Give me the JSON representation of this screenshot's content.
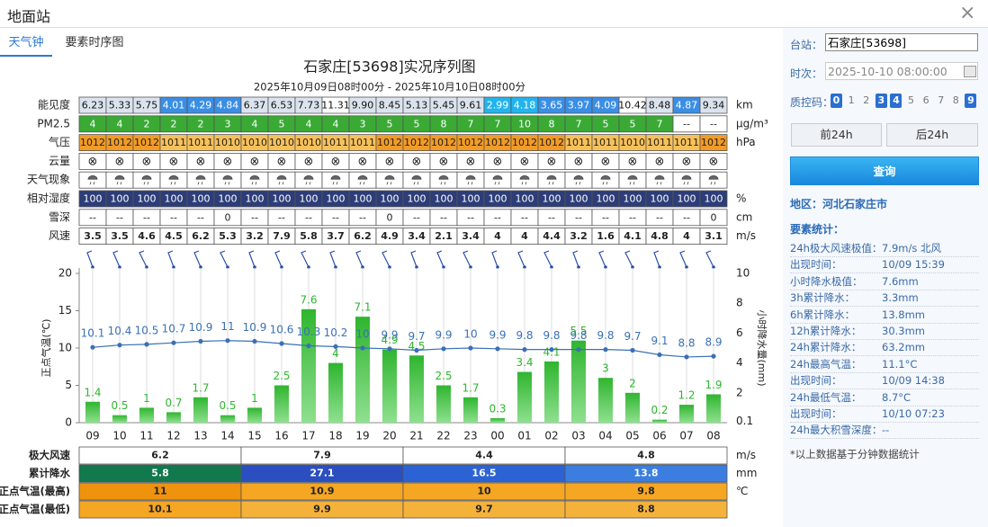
{
  "header": {
    "title": "地面站",
    "close": "×"
  },
  "tabs": [
    "天气钟",
    "要素时序图"
  ],
  "table": {
    "rows": [
      {
        "label": "能见度",
        "unit": "km",
        "values": [
          "6.23",
          "5.33",
          "5.75",
          "4.01",
          "4.29",
          "4.84",
          "6.37",
          "6.53",
          "7.73",
          "11.31",
          "9.90",
          "8.45",
          "5.13",
          "5.45",
          "9.61",
          "2.99",
          "4.18",
          "3.65",
          "3.97",
          "4.09",
          "10.42",
          "8.48",
          "4.87",
          "9.34"
        ]
      },
      {
        "label": "PM2.5",
        "unit": "μg/m³",
        "values": [
          4,
          4,
          2,
          2,
          2,
          3,
          4,
          5,
          4,
          4,
          3,
          5,
          5,
          8,
          7,
          7,
          10,
          8,
          7,
          5,
          5,
          7,
          "--",
          "--"
        ]
      },
      {
        "label": "气压",
        "unit": "hPa",
        "values": [
          1012,
          1012,
          1012,
          1011,
          1011,
          1010,
          1010,
          1010,
          1010,
          1011,
          1011,
          1012,
          1012,
          1012,
          1012,
          1012,
          1012,
          1012,
          1011,
          1011,
          1010,
          1011,
          1011,
          1012
        ]
      },
      {
        "label": "云量",
        "values": [
          "⊗",
          "⊗",
          "⊗",
          "⊗",
          "⊗",
          "⊗",
          "⊗",
          "⊗",
          "⊗",
          "⊗",
          "⊗",
          "⊗",
          "⊗",
          "⊗",
          "⊗",
          "⊗",
          "⊗",
          "⊗",
          "⊗",
          "⊗",
          "⊗",
          "⊗",
          "⊗",
          "⊗"
        ]
      },
      {
        "label": "天气现象"
      },
      {
        "label": "相对湿度",
        "unit": "%",
        "values": [
          100,
          100,
          100,
          100,
          100,
          100,
          100,
          100,
          100,
          100,
          100,
          100,
          100,
          100,
          100,
          100,
          100,
          100,
          100,
          100,
          100,
          100,
          100,
          100
        ]
      },
      {
        "label": "雪深",
        "unit": "cm",
        "values": [
          "--",
          "--",
          "--",
          "--",
          "--",
          0,
          "--",
          "--",
          "--",
          "--",
          "--",
          0,
          "--",
          "--",
          "--",
          "--",
          "--",
          "--",
          "--",
          "--",
          "--",
          "--",
          "--",
          0
        ]
      },
      {
        "label": "风速",
        "unit": "m/s",
        "values": [
          3.5,
          3.5,
          4.6,
          4.5,
          6.2,
          5.3,
          3.2,
          7.9,
          5.8,
          3.7,
          6.2,
          4.9,
          3.4,
          2.1,
          3.4,
          4,
          4,
          4.4,
          3.2,
          1.6,
          4.1,
          4.8,
          4,
          3.1
        ]
      }
    ]
  },
  "chart_data": {
    "type": "combo",
    "title": "石家庄[53698]实况序列图",
    "subtitle": "2025年10月09日08时00分 - 2025年10月10日08时00分",
    "ylabel": "正点气温(℃)",
    "y2label": "小时降水量(mm)",
    "categories": [
      "09",
      "10",
      "11",
      "12",
      "13",
      "14",
      "15",
      "16",
      "17",
      "18",
      "19",
      "20",
      "21",
      "22",
      "23",
      "00",
      "01",
      "02",
      "03",
      "04",
      "05",
      "06",
      "07",
      "08"
    ],
    "ylim": [
      0,
      20
    ],
    "yticks": [
      0,
      5,
      10,
      15,
      20
    ],
    "y2lim": [
      0,
      10
    ],
    "y2ticks": [
      0.1,
      2,
      4,
      6,
      8,
      10
    ],
    "grid": "x",
    "series": [
      {
        "type": "line",
        "color": "#3a70b5",
        "values": [
          10.1,
          10.4,
          10.5,
          10.7,
          10.9,
          11,
          10.9,
          10.6,
          10.3,
          10.2,
          10,
          9.9,
          9.7,
          9.9,
          10,
          9.9,
          9.8,
          9.8,
          9.8,
          9.8,
          9.7,
          9.1,
          8.8,
          8.9
        ]
      },
      {
        "type": "bar",
        "color": "#2fb52f",
        "axis": "y2",
        "values": [
          1.4,
          0.5,
          1,
          0.7,
          1.7,
          0.5,
          1,
          2.5,
          7.6,
          4,
          7.1,
          4.9,
          4.5,
          2.5,
          1.7,
          0.3,
          3.4,
          4.1,
          5.5,
          3,
          2,
          0.2,
          1.2,
          1.9
        ]
      }
    ]
  },
  "summary": {
    "rows": [
      {
        "label": "极大风速",
        "unit": "m/s",
        "values": [
          6.2,
          7.9,
          4.4,
          4.8
        ],
        "colors": [
          "#ffffff",
          "#ffffff",
          "#ffffff",
          "#ffffff"
        ]
      },
      {
        "label": "累计降水",
        "unit": "mm",
        "values": [
          5.8,
          27.1,
          16.5,
          13.8
        ],
        "colors": [
          "#12784e",
          "#2b4fc0",
          "#2c63d4",
          "#3b7ee0"
        ]
      },
      {
        "label": "正点气温(最高)",
        "unit": "℃",
        "values": [
          11,
          10.9,
          10,
          9.8
        ],
        "colors": [
          "#ef930e",
          "#f5a623",
          "#f5a623",
          "#f5a623"
        ]
      },
      {
        "label": "正点气温(最低)",
        "values": [
          10.1,
          9.9,
          9.7,
          8.8
        ],
        "colors": [
          "#f5a623",
          "#f5b23a",
          "#f5b23a",
          "#f5b23a"
        ]
      }
    ]
  },
  "sidebar": {
    "station_label": "台站：",
    "station": "石家庄[53698]",
    "time_label": "时次：",
    "time": "2025-10-10 08:00:00",
    "qc_label": "质控码：",
    "qc_codes": [
      0,
      1,
      2,
      3,
      4,
      5,
      6,
      7,
      8,
      9
    ],
    "qc_selected": [
      true,
      false,
      false,
      true,
      true,
      false,
      false,
      false,
      false,
      true
    ],
    "prev": "前24h",
    "next": "后24h",
    "query": "查询",
    "region": "地区：河北石家庄市",
    "stats_title": "要素统计：",
    "stats": [
      {
        "label": "24h极大风速极值：",
        "value": "7.9m/s 北风"
      },
      {
        "label": "出现时间：",
        "value": "10/09 15:39"
      },
      {
        "label": "小时降水极值：",
        "value": "7.6mm"
      },
      {
        "label": "3h累计降水：",
        "value": "3.3mm"
      },
      {
        "label": "6h累计降水：",
        "value": "13.8mm"
      },
      {
        "label": "12h累计降水：",
        "value": "30.3mm"
      },
      {
        "label": "24h累计降水：",
        "value": "63.2mm"
      },
      {
        "label": "24h最高气温：",
        "value": "11.1°C"
      },
      {
        "label": "出现时间：",
        "value": "10/09 14:38"
      },
      {
        "label": "24h最低气温：",
        "value": "8.7°C"
      },
      {
        "label": "出现时间：",
        "value": "10/10 07:23"
      },
      {
        "label": "24h最大积雪深度：",
        "value": "--"
      }
    ],
    "note": "*以上数据基于分钟数据统计"
  }
}
